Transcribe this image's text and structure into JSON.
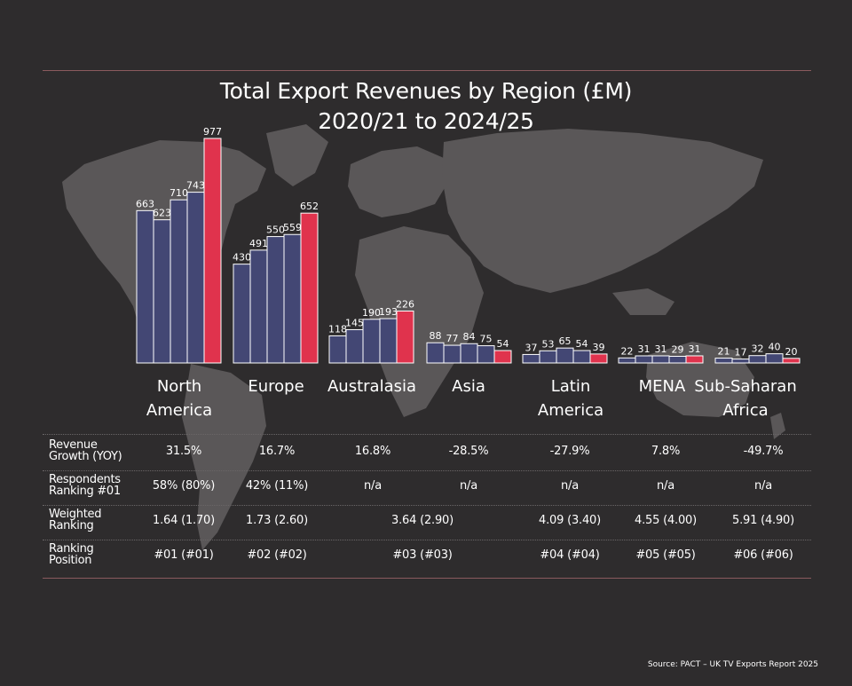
{
  "title_line1": "Total Export Revenues by Region (£M)",
  "title_line2": "2020/21 to 2024/25",
  "source": "Source: PACT – UK TV Exports Report 2025",
  "colors": {
    "prior_years": "#434774",
    "latest_year": "#e0334d",
    "background": "#2e2c2d",
    "map": "#5a5758"
  },
  "chart_data": {
    "type": "bar",
    "title": "Total Export Revenues by Region (£M) 2020/21 to 2024/25",
    "ylabel": "",
    "categories": [
      "North America",
      "Europe",
      "Australasia",
      "Asia",
      "Latin America",
      "MENA",
      "Sub-Saharan Africa"
    ],
    "series": [
      {
        "values": [
          663,
          430,
          118,
          88,
          37,
          22,
          21
        ]
      },
      {
        "values": [
          623,
          491,
          145,
          77,
          53,
          31,
          17
        ]
      },
      {
        "values": [
          710,
          550,
          190,
          84,
          65,
          31,
          32
        ]
      },
      {
        "values": [
          743,
          559,
          193,
          75,
          54,
          29,
          40
        ]
      },
      {
        "values": [
          977,
          652,
          226,
          54,
          39,
          31,
          20
        ]
      }
    ],
    "ylim": [
      0,
      1000
    ],
    "grid": false,
    "legend": "none"
  },
  "regions": [
    {
      "line1": "North",
      "line2": "America"
    },
    {
      "line1": "Europe",
      "line2": ""
    },
    {
      "line1": "Australasia",
      "line2": ""
    },
    {
      "line1": "Asia",
      "line2": ""
    },
    {
      "line1": "Latin",
      "line2": "America"
    },
    {
      "line1": "MENA",
      "line2": ""
    },
    {
      "line1": "Sub-Saharan",
      "line2": "Africa"
    }
  ],
  "table": {
    "rows": [
      {
        "label1": "Revenue",
        "label2": "Growth (YOY)",
        "values": [
          "31.5%",
          "16.7%",
          "16.8%",
          "-28.5%",
          "-27.9%",
          "7.8%",
          "-49.7%"
        ]
      },
      {
        "label1": "Respondents",
        "label2": "Ranking #01",
        "values": [
          "58% (80%)",
          "42% (11%)",
          "n/a",
          "n/a",
          "n/a",
          "n/a",
          "n/a"
        ]
      },
      {
        "label1": "Weighted",
        "label2": "Ranking",
        "values": [
          "1.64 (1.70)",
          "1.73 (2.60)",
          "3.64 (2.90)",
          "4.09 (3.40)",
          "4.55 (4.00)",
          "5.91 (4.90)"
        ]
      },
      {
        "label1": "Ranking",
        "label2": "Position",
        "values": [
          "#01 (#01)",
          "#02 (#02)",
          "#03 (#03)",
          "#04 (#04)",
          "#05 (#05)",
          "#06 (#06)"
        ]
      }
    ]
  }
}
